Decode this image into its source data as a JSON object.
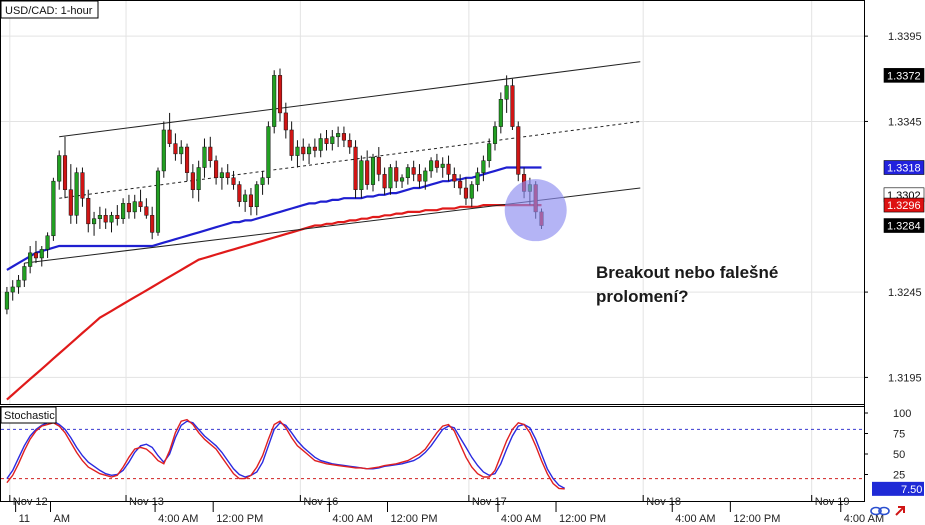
{
  "chart_data": [
    {
      "type": "candlestick",
      "title": "USD/CAD: 1-hour",
      "ylim": [
        1.318,
        1.3415
      ],
      "y_ticks": [
        "1.3395",
        "1.3345",
        "1.3245",
        "1.3195"
      ],
      "price_labels": [
        {
          "text": "1.3372",
          "value": 1.3372,
          "bg": "#000000",
          "fg": "#ffffff"
        },
        {
          "text": "1.3318",
          "value": 1.3318,
          "bg": "#2222dd",
          "fg": "#ffffff"
        },
        {
          "text": "1.3302",
          "value": 1.3302,
          "bg": "#ffffff",
          "fg": "#000000"
        },
        {
          "text": "1.3296",
          "value": 1.3296,
          "bg": "#dd1111",
          "fg": "#ffffff"
        },
        {
          "text": "1.3284",
          "value": 1.3284,
          "bg": "#000000",
          "fg": "#ffffff"
        }
      ],
      "candles": [
        [
          1.3235,
          1.3248,
          1.3232,
          1.3245
        ],
        [
          1.3245,
          1.3252,
          1.324,
          1.3248
        ],
        [
          1.3248,
          1.3255,
          1.3244,
          1.3252
        ],
        [
          1.3252,
          1.3262,
          1.3248,
          1.326
        ],
        [
          1.326,
          1.3272,
          1.3256,
          1.3268
        ],
        [
          1.3268,
          1.3275,
          1.3262,
          1.3265
        ],
        [
          1.3265,
          1.3272,
          1.326,
          1.327
        ],
        [
          1.327,
          1.328,
          1.3265,
          1.3278
        ],
        [
          1.3278,
          1.3312,
          1.3275,
          1.331
        ],
        [
          1.331,
          1.3328,
          1.3305,
          1.3325
        ],
        [
          1.3325,
          1.3336,
          1.33,
          1.3305
        ],
        [
          1.3305,
          1.332,
          1.3285,
          1.329
        ],
        [
          1.329,
          1.3318,
          1.3285,
          1.3315
        ],
        [
          1.3315,
          1.3318,
          1.3295,
          1.33
        ],
        [
          1.33,
          1.3305,
          1.328,
          1.3285
        ],
        [
          1.3285,
          1.3292,
          1.3278,
          1.3288
        ],
        [
          1.3288,
          1.3295,
          1.3282,
          1.329
        ],
        [
          1.329,
          1.3294,
          1.3282,
          1.3286
        ],
        [
          1.3286,
          1.3292,
          1.328,
          1.329
        ],
        [
          1.329,
          1.3296,
          1.3284,
          1.3288
        ],
        [
          1.3288,
          1.33,
          1.3285,
          1.3297
        ],
        [
          1.3297,
          1.3302,
          1.3288,
          1.3292
        ],
        [
          1.3292,
          1.3302,
          1.3288,
          1.3298
        ],
        [
          1.3298,
          1.3305,
          1.3292,
          1.3295
        ],
        [
          1.3295,
          1.33,
          1.3288,
          1.329
        ],
        [
          1.329,
          1.3295,
          1.3276,
          1.328
        ],
        [
          1.328,
          1.3318,
          1.3278,
          1.3316
        ],
        [
          1.3316,
          1.3345,
          1.3312,
          1.334
        ],
        [
          1.334,
          1.335,
          1.333,
          1.3332
        ],
        [
          1.3332,
          1.3338,
          1.3322,
          1.3326
        ],
        [
          1.3326,
          1.3334,
          1.332,
          1.333
        ],
        [
          1.333,
          1.3332,
          1.331,
          1.3315
        ],
        [
          1.3315,
          1.332,
          1.33,
          1.3305
        ],
        [
          1.3305,
          1.3322,
          1.3298,
          1.3318
        ],
        [
          1.3318,
          1.3335,
          1.3312,
          1.333
        ],
        [
          1.333,
          1.3336,
          1.3318,
          1.3322
        ],
        [
          1.3322,
          1.3325,
          1.3308,
          1.3312
        ],
        [
          1.3312,
          1.3318,
          1.3305,
          1.3315
        ],
        [
          1.3315,
          1.332,
          1.3308,
          1.3312
        ],
        [
          1.3312,
          1.3316,
          1.3305,
          1.3308
        ],
        [
          1.3308,
          1.331,
          1.3295,
          1.3298
        ],
        [
          1.3298,
          1.3305,
          1.3292,
          1.3302
        ],
        [
          1.3302,
          1.3306,
          1.329,
          1.3295
        ],
        [
          1.3295,
          1.331,
          1.329,
          1.3308
        ],
        [
          1.3308,
          1.3316,
          1.3302,
          1.3312
        ],
        [
          1.3312,
          1.3345,
          1.3308,
          1.3342
        ],
        [
          1.3342,
          1.3375,
          1.3338,
          1.3372
        ],
        [
          1.3372,
          1.3376,
          1.3345,
          1.335
        ],
        [
          1.335,
          1.3356,
          1.3335,
          1.334
        ],
        [
          1.334,
          1.3345,
          1.3322,
          1.3325
        ],
        [
          1.3325,
          1.3334,
          1.3318,
          1.333
        ],
        [
          1.333,
          1.3335,
          1.3322,
          1.3326
        ],
        [
          1.3326,
          1.3332,
          1.332,
          1.333
        ],
        [
          1.333,
          1.3335,
          1.3324,
          1.3328
        ],
        [
          1.3328,
          1.3338,
          1.3324,
          1.3335
        ],
        [
          1.3335,
          1.334,
          1.3328,
          1.3332
        ],
        [
          1.3332,
          1.334,
          1.3328,
          1.3336
        ],
        [
          1.3336,
          1.3342,
          1.333,
          1.3338
        ],
        [
          1.3338,
          1.3342,
          1.333,
          1.3334
        ],
        [
          1.3334,
          1.3338,
          1.3326,
          1.333
        ],
        [
          1.333,
          1.3334,
          1.33,
          1.3305
        ],
        [
          1.3305,
          1.3325,
          1.33,
          1.3322
        ],
        [
          1.3322,
          1.3328,
          1.3305,
          1.3308
        ],
        [
          1.3308,
          1.3326,
          1.3304,
          1.3324
        ],
        [
          1.3324,
          1.333,
          1.331,
          1.3314
        ],
        [
          1.3314,
          1.3318,
          1.3302,
          1.3306
        ],
        [
          1.3306,
          1.332,
          1.3302,
          1.3318
        ],
        [
          1.3318,
          1.3322,
          1.3306,
          1.331
        ],
        [
          1.331,
          1.3314,
          1.3306,
          1.3312
        ],
        [
          1.3312,
          1.332,
          1.3308,
          1.3318
        ],
        [
          1.3318,
          1.3322,
          1.331,
          1.3314
        ],
        [
          1.3314,
          1.332,
          1.3306,
          1.331
        ],
        [
          1.331,
          1.3318,
          1.3305,
          1.3316
        ],
        [
          1.3316,
          1.3324,
          1.3312,
          1.3322
        ],
        [
          1.3322,
          1.3326,
          1.3315,
          1.3318
        ],
        [
          1.3318,
          1.3324,
          1.3312,
          1.332
        ],
        [
          1.332,
          1.3325,
          1.331,
          1.3314
        ],
        [
          1.3314,
          1.3318,
          1.3306,
          1.331
        ],
        [
          1.331,
          1.3314,
          1.3302,
          1.3306
        ],
        [
          1.3306,
          1.3312,
          1.3296,
          1.33
        ],
        [
          1.33,
          1.331,
          1.3295,
          1.3308
        ],
        [
          1.3308,
          1.3318,
          1.3304,
          1.3315
        ],
        [
          1.3315,
          1.3325,
          1.331,
          1.3322
        ],
        [
          1.3322,
          1.3335,
          1.3318,
          1.3332
        ],
        [
          1.3332,
          1.3345,
          1.3328,
          1.3342
        ],
        [
          1.3342,
          1.3362,
          1.3338,
          1.3358
        ],
        [
          1.3358,
          1.3372,
          1.335,
          1.3366
        ],
        [
          1.3366,
          1.337,
          1.334,
          1.3342
        ],
        [
          1.3342,
          1.3345,
          1.331,
          1.3314
        ],
        [
          1.3314,
          1.3318,
          1.33,
          1.3304
        ],
        [
          1.3304,
          1.3312,
          1.3296,
          1.3308
        ],
        [
          1.3308,
          1.331,
          1.3288,
          1.3292
        ],
        [
          1.3292,
          1.3294,
          1.3282,
          1.3284
        ]
      ],
      "series": [
        {
          "name": "",
          "color": "#1f1fd0",
          "values": [
            1.3258,
            1.326,
            1.3262,
            1.3264,
            1.3266,
            1.3268,
            1.3269,
            1.327,
            1.3271,
            1.3272,
            1.3272,
            1.3272,
            1.3272,
            1.3272,
            1.3272,
            1.3272,
            1.3272,
            1.3272,
            1.3272,
            1.3272,
            1.3272,
            1.3272,
            1.3272,
            1.3272,
            1.3272,
            1.3272,
            1.3273,
            1.3274,
            1.3275,
            1.3276,
            1.3277,
            1.3278,
            1.3279,
            1.328,
            1.3281,
            1.3282,
            1.3283,
            1.3284,
            1.3285,
            1.3286,
            1.3286,
            1.3287,
            1.3287,
            1.3288,
            1.3289,
            1.329,
            1.3291,
            1.3292,
            1.3293,
            1.3294,
            1.3295,
            1.3296,
            1.3297,
            1.3297,
            1.3298,
            1.3298,
            1.3299,
            1.3299,
            1.33,
            1.33,
            1.33,
            1.33,
            1.3301,
            1.3301,
            1.3302,
            1.3302,
            1.3303,
            1.3303,
            1.3304,
            1.3305,
            1.3306,
            1.3306,
            1.3307,
            1.3308,
            1.3309,
            1.331,
            1.331,
            1.3311,
            1.3311,
            1.3312,
            1.3312,
            1.3313,
            1.3314,
            1.3315,
            1.3316,
            1.3317,
            1.3318,
            1.3318,
            1.3318,
            1.3318,
            1.3318,
            1.3318,
            1.3318
          ]
        },
        {
          "name": "",
          "color": "#e01a1a",
          "values": [
            1.3182,
            1.3185,
            1.3188,
            1.3191,
            1.3194,
            1.3197,
            1.32,
            1.3203,
            1.3206,
            1.3209,
            1.3212,
            1.3215,
            1.3218,
            1.3221,
            1.3224,
            1.3227,
            1.323,
            1.3232,
            1.3234,
            1.3236,
            1.3238,
            1.324,
            1.3242,
            1.3244,
            1.3246,
            1.3248,
            1.325,
            1.3252,
            1.3254,
            1.3256,
            1.3258,
            1.326,
            1.3262,
            1.3264,
            1.3265,
            1.3266,
            1.3267,
            1.3268,
            1.3269,
            1.327,
            1.3271,
            1.3272,
            1.3273,
            1.3274,
            1.3275,
            1.3276,
            1.3277,
            1.3278,
            1.3279,
            1.328,
            1.3281,
            1.3282,
            1.3283,
            1.3284,
            1.3284,
            1.3285,
            1.3285,
            1.3286,
            1.3286,
            1.3287,
            1.3287,
            1.3288,
            1.3288,
            1.3289,
            1.3289,
            1.329,
            1.329,
            1.3291,
            1.3291,
            1.3292,
            1.3292,
            1.3292,
            1.3293,
            1.3293,
            1.3293,
            1.3294,
            1.3294,
            1.3294,
            1.3295,
            1.3295,
            1.3295,
            1.3295,
            1.3296,
            1.3296,
            1.3296,
            1.3296,
            1.3296,
            1.3296,
            1.3296,
            1.3296,
            1.3296,
            1.3296,
            1.3296
          ]
        }
      ],
      "trendlines": [
        {
          "style": "solid",
          "from": [
            9,
            1.3336
          ],
          "to": [
            109,
            1.338
          ]
        },
        {
          "style": "dashed",
          "from": [
            9,
            1.33
          ],
          "to": [
            109,
            1.3345
          ]
        },
        {
          "style": "solid",
          "from": [
            3,
            1.3262
          ],
          "to": [
            109,
            1.3306
          ]
        }
      ],
      "highlight": {
        "center": [
          91,
          1.3293
        ],
        "color": "#8c8cf0"
      },
      "annotation": {
        "lines": [
          "Breakout nebo falešné",
          "prolomení?"
        ]
      }
    },
    {
      "type": "line",
      "title": "Stochastic",
      "ylim": [
        0,
        100
      ],
      "y_ticks": [
        "100",
        "75",
        "50",
        "25"
      ],
      "levels": [
        80,
        20
      ],
      "value_label": "7.50",
      "series": [
        {
          "name": "",
          "color": "#2a2ae0",
          "values": [
            20,
            30,
            45,
            60,
            72,
            80,
            85,
            88,
            90,
            86,
            80,
            70,
            58,
            48,
            40,
            35,
            30,
            26,
            24,
            25,
            30,
            40,
            52,
            60,
            62,
            58,
            48,
            40,
            50,
            70,
            85,
            90,
            88,
            80,
            72,
            66,
            60,
            52,
            42,
            32,
            25,
            22,
            24,
            28,
            40,
            60,
            80,
            88,
            85,
            76,
            66,
            58,
            52,
            46,
            42,
            40,
            38,
            37,
            36,
            35,
            34,
            33,
            32,
            32,
            33,
            35,
            36,
            37,
            38,
            40,
            42,
            46,
            52,
            60,
            70,
            80,
            84,
            82,
            70,
            58,
            46,
            36,
            28,
            24,
            26,
            38,
            56,
            72,
            84,
            86,
            82,
            68,
            50,
            32,
            20,
            12,
            8
          ]
        },
        {
          "name": "",
          "color": "#e02020",
          "values": [
            15,
            24,
            38,
            54,
            68,
            78,
            84,
            86,
            88,
            84,
            76,
            64,
            52,
            42,
            34,
            30,
            26,
            24,
            22,
            24,
            34,
            46,
            56,
            58,
            56,
            50,
            42,
            38,
            54,
            76,
            90,
            92,
            86,
            76,
            68,
            62,
            56,
            46,
            36,
            26,
            20,
            20,
            24,
            34,
            48,
            68,
            86,
            90,
            82,
            70,
            60,
            54,
            48,
            42,
            40,
            38,
            37,
            36,
            35,
            34,
            33,
            33,
            32,
            33,
            34,
            36,
            37,
            38,
            40,
            42,
            46,
            50,
            56,
            66,
            76,
            84,
            86,
            78,
            62,
            46,
            34,
            26,
            22,
            22,
            30,
            48,
            66,
            80,
            88,
            86,
            76,
            60,
            42,
            26,
            14,
            8,
            7.5
          ]
        }
      ]
    }
  ],
  "x_labels": [
    {
      "text": "Nov 12",
      "row": 1,
      "i": 1
    },
    {
      "text": "Nov 13",
      "row": 1,
      "i": 21
    },
    {
      "text": "Nov 16",
      "row": 1,
      "i": 51
    },
    {
      "text": "Nov 17",
      "row": 1,
      "i": 80
    },
    {
      "text": "Nov 18",
      "row": 1,
      "i": 110
    },
    {
      "text": "Nov 19",
      "row": 1,
      "i": 139
    },
    {
      "text": "11",
      "row": 2,
      "i": 2
    },
    {
      "text": "AM",
      "row": 2,
      "i": 8
    },
    {
      "text": "4:00 AM",
      "row": 2,
      "i": 26
    },
    {
      "text": "12:00 PM",
      "row": 2,
      "i": 36
    },
    {
      "text": "4:00 AM",
      "row": 2,
      "i": 56
    },
    {
      "text": "12:00 PM",
      "row": 2,
      "i": 66
    },
    {
      "text": "4:00 AM",
      "row": 2,
      "i": 85
    },
    {
      "text": "12:00 PM",
      "row": 2,
      "i": 95
    },
    {
      "text": "4:00 AM",
      "row": 2,
      "i": 115
    },
    {
      "text": "12:00 PM",
      "row": 2,
      "i": 125
    },
    {
      "text": "4:00 AM",
      "row": 2,
      "i": 144
    }
  ],
  "x_divisions": 148,
  "colors": {
    "bull": "#22a022",
    "bear": "#d01515",
    "grid": "#e3e3e3",
    "level": "#4444cc"
  },
  "toolbar": {
    "icons": [
      "link-icon",
      "arrow-icon"
    ]
  }
}
